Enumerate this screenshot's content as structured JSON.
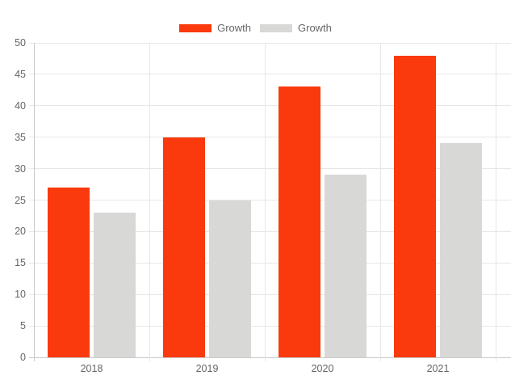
{
  "chart_data": {
    "type": "bar",
    "title": "",
    "xlabel": "",
    "ylabel": "",
    "categories": [
      "2018",
      "2019",
      "2020",
      "2021"
    ],
    "series": [
      {
        "name": "Growth",
        "color": "#fa390c",
        "values": [
          27,
          35,
          43,
          48
        ]
      },
      {
        "name": "Growth",
        "color": "#d8d8d6",
        "values": [
          23,
          25,
          29,
          34
        ]
      }
    ],
    "ylim": [
      0,
      50
    ],
    "yticks": [
      0,
      5,
      10,
      15,
      20,
      25,
      30,
      35,
      40,
      45,
      50
    ],
    "grid": true,
    "legend_position": "top-center",
    "colors": {
      "background": "#ffffff",
      "gridline": "#e7e7e7",
      "axis_line": "#c9c9c9",
      "tick_text": "#666666"
    }
  }
}
